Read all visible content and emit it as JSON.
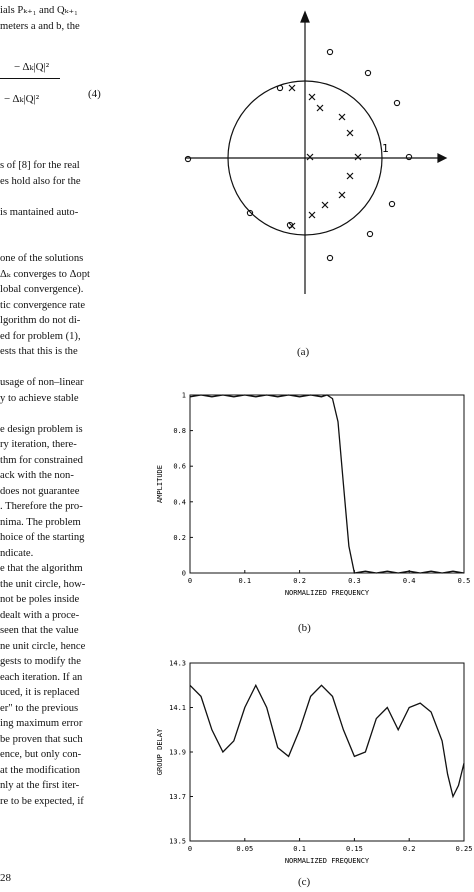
{
  "left_column": {
    "lines": [
      "ials Pₖ₊₁ and Qₖ₊₁",
      "meters a and b, the",
      "",
      "",
      "",
      "",
      "",
      "",
      "",
      "",
      "s of [8] for the real",
      "es hold also for the",
      "",
      "is mantained auto-",
      "",
      "",
      "one of the solutions",
      "Δₖ converges to Δopt",
      "lobal convergence).",
      "tic convergence rate",
      "lgorithm do not di-",
      "ed for problem (1),",
      "ests that this is the",
      "",
      "usage of non–linear",
      "y to achieve stable",
      "",
      "e design problem is",
      "ry iteration, there-",
      "thm for constrained",
      "ack with the non-",
      "does not guarantee",
      ". Therefore the pro-",
      "nima. The problem",
      "hoice of the starting",
      "ndicate.",
      "e that the algorithm",
      "the unit circle, how-",
      "not be poles inside",
      "dealt with a proce-",
      "seen that the value",
      "ne unit circle, hence",
      "gests to modify the",
      "each iteration. If an",
      "uced, it is replaced",
      "er\" to the previous",
      "ing maximum error",
      "be proven that such",
      "ence, but only con-",
      "at the modification",
      "nly at the first iter-",
      "re to be expected, if"
    ],
    "eq_line1": "− Δₖ|Q|²",
    "eq_line2": "− Δₖ|Q|²",
    "eq_number": "(4)",
    "page_number": "28"
  },
  "figure_a": {
    "caption": "(a)",
    "unit_label": "1"
  },
  "figure_b": {
    "caption": "(b)",
    "chart_data": {
      "type": "line",
      "xlabel": "NORMALIZED FREQUENCY",
      "ylabel": "AMPLITUDE",
      "xlim": [
        0,
        0.5
      ],
      "ylim": [
        0,
        1
      ],
      "x_ticks": [
        "0",
        "0.1",
        "0.2",
        "0.3",
        "0.4",
        "0.5"
      ],
      "y_ticks": [
        "0",
        "0.2",
        "0.4",
        "0.6",
        "0.8",
        "1"
      ],
      "x": [
        0,
        0.02,
        0.04,
        0.06,
        0.08,
        0.1,
        0.12,
        0.14,
        0.16,
        0.18,
        0.2,
        0.22,
        0.24,
        0.25,
        0.26,
        0.27,
        0.28,
        0.29,
        0.3,
        0.32,
        0.34,
        0.36,
        0.38,
        0.4,
        0.42,
        0.44,
        0.46,
        0.48,
        0.5
      ],
      "y": [
        0.99,
        1.0,
        0.99,
        1.0,
        0.99,
        1.0,
        0.99,
        1.0,
        0.99,
        1.0,
        0.99,
        1.0,
        0.99,
        1.0,
        0.98,
        0.85,
        0.5,
        0.15,
        0.0,
        0.01,
        0.0,
        0.01,
        0.0,
        0.01,
        0.0,
        0.01,
        0.0,
        0.01,
        0.0
      ]
    }
  },
  "figure_c": {
    "caption": "(c)",
    "chart_data": {
      "type": "line",
      "xlabel": "NORMALIZED FREQUENCY",
      "ylabel": "GROUP DELAY",
      "xlim": [
        0,
        0.25
      ],
      "ylim": [
        13.5,
        14.3
      ],
      "x_ticks": [
        "0",
        "0.05",
        "0.1",
        "0.15",
        "0.2",
        "0.25"
      ],
      "y_ticks": [
        "13.5",
        "13.7",
        "13.9",
        "14.1",
        "14.3"
      ],
      "x": [
        0,
        0.01,
        0.02,
        0.03,
        0.04,
        0.05,
        0.06,
        0.07,
        0.08,
        0.09,
        0.1,
        0.11,
        0.12,
        0.13,
        0.14,
        0.15,
        0.16,
        0.17,
        0.18,
        0.19,
        0.2,
        0.21,
        0.22,
        0.23,
        0.235,
        0.24,
        0.245,
        0.25
      ],
      "y": [
        14.2,
        14.15,
        14.0,
        13.9,
        13.95,
        14.1,
        14.2,
        14.1,
        13.92,
        13.88,
        14.0,
        14.15,
        14.2,
        14.15,
        14.0,
        13.88,
        13.9,
        14.05,
        14.1,
        14.0,
        14.1,
        14.12,
        14.08,
        13.95,
        13.8,
        13.7,
        13.75,
        13.85
      ]
    }
  }
}
